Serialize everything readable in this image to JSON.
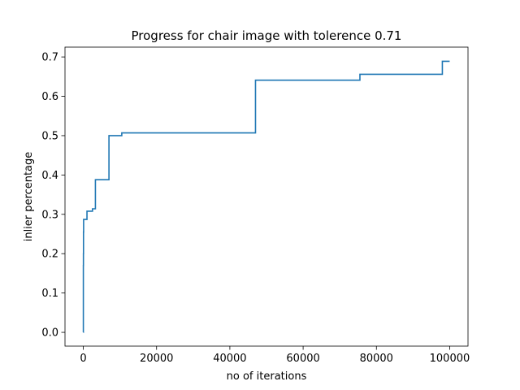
{
  "chart_data": {
    "type": "line",
    "title": "Progress for chair image with tolerence 0.71",
    "xlabel": "no of iterations",
    "ylabel": "inlier percentage",
    "xlim": [
      -5000,
      105000
    ],
    "ylim": [
      -0.035,
      0.725
    ],
    "xticks": [
      0,
      20000,
      40000,
      60000,
      80000,
      100000
    ],
    "xtick_labels": [
      "0",
      "20000",
      "40000",
      "60000",
      "80000",
      "100000"
    ],
    "yticks": [
      0.0,
      0.1,
      0.2,
      0.3,
      0.4,
      0.5,
      0.6,
      0.7
    ],
    "ytick_labels": [
      "0.0",
      "0.1",
      "0.2",
      "0.3",
      "0.4",
      "0.5",
      "0.6",
      "0.7"
    ],
    "grid": false,
    "step": "post",
    "series": [
      {
        "color": "#1f77b4",
        "x": [
          0,
          10,
          30,
          50,
          80,
          100,
          1000,
          2500,
          3300,
          7000,
          10500,
          47000,
          75500,
          98000,
          100000
        ],
        "y": [
          0.0,
          0.17,
          0.2,
          0.255,
          0.287,
          0.287,
          0.308,
          0.314,
          0.388,
          0.5,
          0.507,
          0.641,
          0.656,
          0.689,
          0.689
        ]
      }
    ]
  }
}
